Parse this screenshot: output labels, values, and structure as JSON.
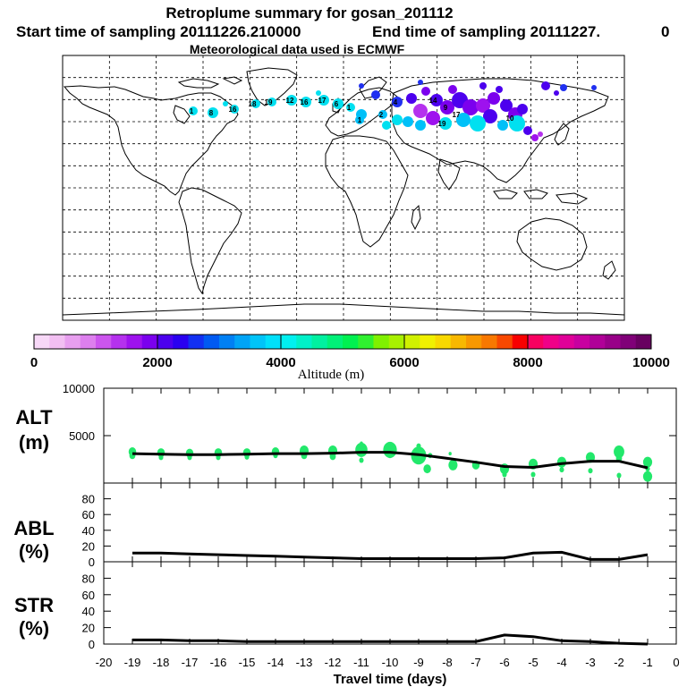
{
  "title": {
    "line1": "Retroplume summary for gosan_201112",
    "start": "Start time of sampling 20111226.210000",
    "end": "End time of sampling 20111227.",
    "end_suffix": "0",
    "met": "Meteorological data used is ECMWF"
  },
  "colors": {
    "marker": "#22e86b",
    "line": "#000000",
    "scale": [
      "#f7d8f7",
      "#f2bff2",
      "#e89fef",
      "#dd7fee",
      "#cc55ee",
      "#b531ee",
      "#9e12ee",
      "#7b00ee",
      "#4c00ee",
      "#2a00f0",
      "#1230f2",
      "#005af2",
      "#0080f4",
      "#00a4f6",
      "#00c4f8",
      "#00e0fa",
      "#00f0f0",
      "#00f0c8",
      "#00f0a0",
      "#00f078",
      "#00f050",
      "#30f030",
      "#80f000",
      "#a8f000",
      "#d0f000",
      "#f0f000",
      "#f8d800",
      "#f8b800",
      "#f89800",
      "#f87800",
      "#f84800",
      "#f80000",
      "#f80060",
      "#f00088",
      "#e00098",
      "#c800a0",
      "#b00098",
      "#980088",
      "#800078",
      "#680060"
    ]
  },
  "markers": {
    "labels": [
      "1",
      "8",
      "16",
      "18",
      "19",
      "12",
      "16",
      "17",
      "6",
      "1",
      "1",
      "2",
      "4",
      "14",
      "9",
      "17",
      "19",
      "10"
    ],
    "plume_colors": [
      "#00e0f0",
      "#00c0f8",
      "#2030f0",
      "#4c00ee",
      "#7b00ee",
      "#9e12ee",
      "#b531ee"
    ]
  },
  "chart_data": [
    {
      "type": "bar",
      "name": "altitude colour scale",
      "xlabel": "Altitude (m)",
      "range": [
        0,
        10000
      ],
      "ticks": [
        0,
        2000,
        4000,
        6000,
        8000,
        10000
      ],
      "tick_labels": [
        "0",
        "2000",
        "4000",
        "6000",
        "8000",
        "10000"
      ],
      "n_colors": 40
    },
    {
      "type": "line",
      "name": "ALT",
      "ylabel_top": "ALT",
      "ylabel_bottom": "(m)",
      "ylim": [
        0,
        10000
      ],
      "yticks": [
        0,
        5000,
        10000
      ],
      "ytick_labels": [
        "5000",
        "10000"
      ],
      "x": [
        -19,
        -18,
        -17,
        -16,
        -15,
        -14,
        -13,
        -12,
        -11,
        -10,
        -9,
        -8,
        -7,
        -6,
        -5,
        -4,
        -3,
        -2,
        -1
      ],
      "values": [
        3100,
        3050,
        3000,
        3000,
        3050,
        3100,
        3100,
        3150,
        3250,
        3250,
        3000,
        2600,
        2200,
        1750,
        1650,
        2050,
        2300,
        2300,
        1600
      ],
      "scatter": [
        {
          "x": -19,
          "y": 3300,
          "s": 5
        },
        {
          "x": -19,
          "y": 2900,
          "s": 4
        },
        {
          "x": -18,
          "y": 3200,
          "s": 5
        },
        {
          "x": -18,
          "y": 2700,
          "s": 3
        },
        {
          "x": -17,
          "y": 3150,
          "s": 5
        },
        {
          "x": -17,
          "y": 2700,
          "s": 3
        },
        {
          "x": -16,
          "y": 3200,
          "s": 5
        },
        {
          "x": -16,
          "y": 2700,
          "s": 3
        },
        {
          "x": -15,
          "y": 3200,
          "s": 5
        },
        {
          "x": -15,
          "y": 2750,
          "s": 3
        },
        {
          "x": -14,
          "y": 3300,
          "s": 5
        },
        {
          "x": -14,
          "y": 2900,
          "s": 3
        },
        {
          "x": -13,
          "y": 3400,
          "s": 6
        },
        {
          "x": -13,
          "y": 2900,
          "s": 4
        },
        {
          "x": -12,
          "y": 3400,
          "s": 6
        },
        {
          "x": -12,
          "y": 2800,
          "s": 4
        },
        {
          "x": -11,
          "y": 3500,
          "s": 8
        },
        {
          "x": -11,
          "y": 2400,
          "s": 3
        },
        {
          "x": -11,
          "y": 4200,
          "s": 2
        },
        {
          "x": -10,
          "y": 3500,
          "s": 9
        },
        {
          "x": -10,
          "y": 3000,
          "s": 4
        },
        {
          "x": -9,
          "y": 2900,
          "s": 10
        },
        {
          "x": -9,
          "y": 3900,
          "s": 3
        },
        {
          "x": -8.7,
          "y": 1500,
          "s": 5
        },
        {
          "x": -8.6,
          "y": 2900,
          "s": 3
        },
        {
          "x": -7.8,
          "y": 1900,
          "s": 6
        },
        {
          "x": -7.9,
          "y": 3100,
          "s": 2
        },
        {
          "x": -7,
          "y": 1900,
          "s": 5
        },
        {
          "x": -6,
          "y": 1500,
          "s": 6
        },
        {
          "x": -6,
          "y": 900,
          "s": 3
        },
        {
          "x": -5,
          "y": 2000,
          "s": 6
        },
        {
          "x": -5,
          "y": 900,
          "s": 3
        },
        {
          "x": -4,
          "y": 2200,
          "s": 6
        },
        {
          "x": -4,
          "y": 1400,
          "s": 3
        },
        {
          "x": -3,
          "y": 2700,
          "s": 6
        },
        {
          "x": -3,
          "y": 1300,
          "s": 3
        },
        {
          "x": -2,
          "y": 3300,
          "s": 7
        },
        {
          "x": -2,
          "y": 2600,
          "s": 4
        },
        {
          "x": -2,
          "y": 800,
          "s": 3
        },
        {
          "x": -1,
          "y": 2200,
          "s": 6
        },
        {
          "x": -1,
          "y": 700,
          "s": 6
        },
        {
          "x": -1,
          "y": 1500,
          "s": 3
        }
      ]
    },
    {
      "type": "line",
      "name": "ABL",
      "ylabel_top": "ABL",
      "ylabel_bottom": "(%)",
      "ylim": [
        0,
        100
      ],
      "yticks": [
        0,
        20,
        40,
        60,
        80
      ],
      "ytick_labels": [
        "0",
        "20",
        "40",
        "60",
        "80"
      ],
      "x": [
        -19,
        -18,
        -17,
        -16,
        -15,
        -14,
        -13,
        -12,
        -11,
        -10,
        -9,
        -8,
        -7,
        -6,
        -5,
        -4,
        -3,
        -2,
        -1
      ],
      "values": [
        11,
        11,
        10,
        9,
        8,
        7,
        6,
        5,
        4,
        4,
        4,
        4,
        4,
        5,
        11,
        12,
        3,
        3,
        9
      ]
    },
    {
      "type": "line",
      "name": "STR",
      "ylabel_top": "STR",
      "ylabel_bottom": "(%)",
      "ylim": [
        0,
        100
      ],
      "yticks": [
        0,
        20,
        40,
        60,
        80
      ],
      "ytick_labels": [
        "0",
        "20",
        "40",
        "60",
        "80"
      ],
      "xlabel": "Travel time (days)",
      "xlim": [
        -20,
        0
      ],
      "xticks": [
        -20,
        -19,
        -18,
        -17,
        -16,
        -15,
        -14,
        -13,
        -12,
        -11,
        -10,
        -9,
        -8,
        -7,
        -6,
        -5,
        -4,
        -3,
        -2,
        -1,
        0
      ],
      "xtick_labels": [
        "-20",
        "-19",
        "-18",
        "-17",
        "-16",
        "-15",
        "-14",
        "-13",
        "-12",
        "-11",
        "-10",
        "-9",
        "-8",
        "-7",
        "-6",
        "-5",
        "-4",
        "-3",
        "-2",
        "-1",
        "0"
      ],
      "x": [
        -19,
        -18,
        -17,
        -16,
        -15,
        -14,
        -13,
        -12,
        -11,
        -10,
        -9,
        -8,
        -7,
        -6,
        -5,
        -4,
        -3,
        -2,
        -1
      ],
      "values": [
        5,
        5,
        4,
        4,
        3,
        3,
        3,
        3,
        3,
        3,
        3,
        3,
        3,
        11,
        9,
        4,
        3,
        1,
        0
      ]
    }
  ]
}
